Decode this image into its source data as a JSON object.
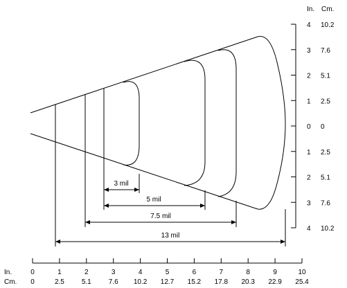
{
  "right_axis": {
    "in_header": "In.",
    "cm_header": "Cm.",
    "ticks": [
      {
        "in": "4",
        "cm": "10.2"
      },
      {
        "in": "3",
        "cm": "7.6"
      },
      {
        "in": "2",
        "cm": "5.1"
      },
      {
        "in": "1",
        "cm": "2.5"
      },
      {
        "in": "0",
        "cm": "0"
      },
      {
        "in": "1",
        "cm": "2.5"
      },
      {
        "in": "2",
        "cm": "5.1"
      },
      {
        "in": "3",
        "cm": "7.6"
      },
      {
        "in": "4",
        "cm": "10.2"
      }
    ]
  },
  "bottom_axis": {
    "in_header": "In.",
    "cm_header": "Cm.",
    "ticks": [
      {
        "in": "0",
        "cm": "0"
      },
      {
        "in": "1",
        "cm": "2.5"
      },
      {
        "in": "2",
        "cm": "5.1"
      },
      {
        "in": "3",
        "cm": "7.6"
      },
      {
        "in": "4",
        "cm": "10.2"
      },
      {
        "in": "5",
        "cm": "12.7"
      },
      {
        "in": "6",
        "cm": "15.2"
      },
      {
        "in": "7",
        "cm": "17.8"
      },
      {
        "in": "8",
        "cm": "20.3"
      },
      {
        "in": "9",
        "cm": "22.9"
      },
      {
        "in": "10",
        "cm": "25.4"
      }
    ]
  },
  "ranges": [
    {
      "label": "3 mil"
    },
    {
      "label": "5 mil"
    },
    {
      "label": "7.5 mil"
    },
    {
      "label": "13 mil"
    }
  ]
}
